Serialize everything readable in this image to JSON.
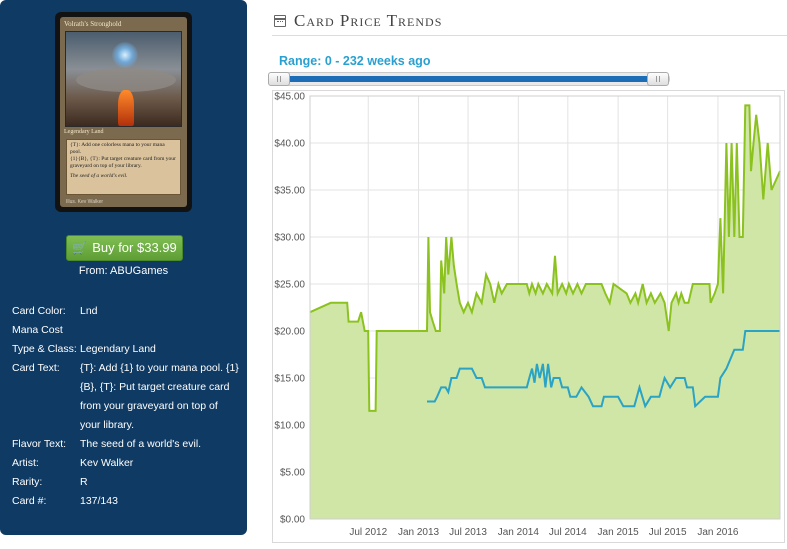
{
  "card": {
    "name": "Volrath's Stronghold",
    "type_line": "Legendary Land",
    "text_line1": "{T}: Add one colorless mana to your mana pool.",
    "text_line2": "{1}{B}, {T}: Put target creature card from your graveyard on top of your library.",
    "flavor": "The seed of a world's evil.",
    "illustrator": "Illus. Kev Walker"
  },
  "buy": {
    "label": "Buy for $33.99",
    "from": "From: ABUGames",
    "icon": "cart-icon"
  },
  "props": [
    {
      "label": "Card Color:",
      "value": "Lnd"
    },
    {
      "label": "Mana Cost",
      "value": ""
    },
    {
      "label": "Type & Class:",
      "value": "Legendary Land"
    },
    {
      "label": "Card Text:",
      "value": "{T}: Add {1} to your mana pool. {1}{B}, {T}: Put target creature card from your graveyard on top of your library."
    },
    {
      "label": "Flavor Text:",
      "value": "The seed of a world's evil."
    },
    {
      "label": "Artist:",
      "value": "Kev Walker"
    },
    {
      "label": "Rarity:",
      "value": "R"
    },
    {
      "label": "Card #:",
      "value": "137/143"
    }
  ],
  "section": {
    "title": "Card Price Trends",
    "icon": "calendar-icon"
  },
  "range": {
    "label": "Range: 0 - 232 weeks ago",
    "min": 0,
    "max": 232
  },
  "colors": {
    "panel": "#0f3a63",
    "buy": "#6aab3f",
    "range_text": "#29a0d0",
    "slider": "#1c6db5",
    "green_line": "#8cc21f",
    "green_fill": "#cfe6a6",
    "blue_line": "#2aa3c4"
  },
  "chart_data": {
    "type": "area",
    "x_type": "date",
    "xlim": [
      "2011-12-01",
      "2016-08-15"
    ],
    "ylim": [
      0,
      45
    ],
    "grid": true,
    "y_ticks": [
      "$0.00",
      "$5.00",
      "$10.00",
      "$15.00",
      "$20.00",
      "$25.00",
      "$30.00",
      "$35.00",
      "$40.00",
      "$45.00"
    ],
    "x_ticks": [
      {
        "date": "2012-07-01",
        "label": "Jul 2012"
      },
      {
        "date": "2013-01-01",
        "label": "Jan 2013"
      },
      {
        "date": "2013-07-01",
        "label": "Jul 2013"
      },
      {
        "date": "2014-01-01",
        "label": "Jan 2014"
      },
      {
        "date": "2014-07-01",
        "label": "Jul 2014"
      },
      {
        "date": "2015-01-01",
        "label": "Jan 2015"
      },
      {
        "date": "2015-07-01",
        "label": "Jul 2015"
      },
      {
        "date": "2016-01-01",
        "label": "Jan 2016"
      }
    ],
    "series": [
      {
        "style": "area",
        "points": [
          [
            "2011-12-01",
            22.0
          ],
          [
            "2012-02-15",
            23.0
          ],
          [
            "2012-04-15",
            23.0
          ],
          [
            "2012-04-20",
            21.0
          ],
          [
            "2012-05-25",
            21.0
          ],
          [
            "2012-06-05",
            22.0
          ],
          [
            "2012-06-18",
            20.0
          ],
          [
            "2012-07-01",
            20.0
          ],
          [
            "2012-07-05",
            11.5
          ],
          [
            "2012-07-28",
            11.5
          ],
          [
            "2012-08-01",
            20.0
          ],
          [
            "2013-02-01",
            20.0
          ],
          [
            "2013-02-06",
            30.0
          ],
          [
            "2013-02-12",
            22.0
          ],
          [
            "2013-02-22",
            21.0
          ],
          [
            "2013-03-05",
            20.0
          ],
          [
            "2013-03-20",
            20.0
          ],
          [
            "2013-03-25",
            27.5
          ],
          [
            "2013-04-05",
            24.0
          ],
          [
            "2013-04-12",
            30.0
          ],
          [
            "2013-04-20",
            26.0
          ],
          [
            "2013-05-01",
            30.0
          ],
          [
            "2013-05-10",
            27.0
          ],
          [
            "2013-05-20",
            25.0
          ],
          [
            "2013-06-01",
            23.0
          ],
          [
            "2013-06-15",
            22.0
          ],
          [
            "2013-07-01",
            23.0
          ],
          [
            "2013-07-15",
            22.0
          ],
          [
            "2013-08-01",
            24.0
          ],
          [
            "2013-08-20",
            23.0
          ],
          [
            "2013-09-05",
            26.0
          ],
          [
            "2013-09-20",
            25.0
          ],
          [
            "2013-10-05",
            23.0
          ],
          [
            "2013-10-20",
            25.0
          ],
          [
            "2013-11-01",
            24.0
          ],
          [
            "2013-11-20",
            25.0
          ],
          [
            "2014-02-01",
            25.0
          ],
          [
            "2014-02-10",
            24.0
          ],
          [
            "2014-02-20",
            25.0
          ],
          [
            "2014-03-05",
            24.0
          ],
          [
            "2014-03-15",
            25.0
          ],
          [
            "2014-04-01",
            24.0
          ],
          [
            "2014-04-15",
            25.0
          ],
          [
            "2014-05-05",
            24.0
          ],
          [
            "2014-05-15",
            28.0
          ],
          [
            "2014-05-25",
            24.0
          ],
          [
            "2014-06-10",
            25.0
          ],
          [
            "2014-06-25",
            24.0
          ],
          [
            "2014-07-05",
            25.0
          ],
          [
            "2014-07-20",
            24.0
          ],
          [
            "2014-08-05",
            25.0
          ],
          [
            "2014-08-20",
            24.0
          ],
          [
            "2014-09-05",
            25.0
          ],
          [
            "2014-11-01",
            25.0
          ],
          [
            "2014-11-15",
            24.0
          ],
          [
            "2014-12-01",
            23.0
          ],
          [
            "2014-12-15",
            25.0
          ],
          [
            "2015-02-01",
            24.0
          ],
          [
            "2015-02-15",
            23.0
          ],
          [
            "2015-03-05",
            24.0
          ],
          [
            "2015-03-15",
            23.0
          ],
          [
            "2015-04-01",
            25.0
          ],
          [
            "2015-04-15",
            23.0
          ],
          [
            "2015-05-01",
            24.0
          ],
          [
            "2015-05-15",
            23.0
          ],
          [
            "2015-06-05",
            24.0
          ],
          [
            "2015-06-20",
            23.0
          ],
          [
            "2015-07-05",
            20.0
          ],
          [
            "2015-07-15",
            23.0
          ],
          [
            "2015-08-01",
            24.0
          ],
          [
            "2015-08-10",
            23.0
          ],
          [
            "2015-08-20",
            24.0
          ],
          [
            "2015-09-01",
            23.0
          ],
          [
            "2015-09-15",
            23.0
          ],
          [
            "2015-10-01",
            25.0
          ],
          [
            "2015-12-01",
            25.0
          ],
          [
            "2015-12-05",
            23.0
          ],
          [
            "2015-12-20",
            24.0
          ],
          [
            "2016-01-01",
            25.0
          ],
          [
            "2016-01-10",
            32.0
          ],
          [
            "2016-01-20",
            24.0
          ],
          [
            "2016-02-01",
            40.0
          ],
          [
            "2016-02-10",
            30.0
          ],
          [
            "2016-02-20",
            40.0
          ],
          [
            "2016-03-01",
            30.0
          ],
          [
            "2016-03-10",
            40.0
          ],
          [
            "2016-03-20",
            30.0
          ],
          [
            "2016-04-01",
            30.0
          ],
          [
            "2016-04-10",
            44.0
          ],
          [
            "2016-04-25",
            44.0
          ],
          [
            "2016-05-01",
            37.0
          ],
          [
            "2016-05-10",
            40.0
          ],
          [
            "2016-05-20",
            43.0
          ],
          [
            "2016-06-01",
            40.0
          ],
          [
            "2016-06-15",
            34.0
          ],
          [
            "2016-07-01",
            40.0
          ],
          [
            "2016-07-15",
            35.0
          ],
          [
            "2016-08-15",
            37.0
          ]
        ]
      },
      {
        "style": "line",
        "points": [
          [
            "2013-02-01",
            12.5
          ],
          [
            "2013-03-01",
            12.5
          ],
          [
            "2013-03-10",
            13.0
          ],
          [
            "2013-03-25",
            14.0
          ],
          [
            "2013-04-10",
            14.0
          ],
          [
            "2013-04-20",
            13.5
          ],
          [
            "2013-05-01",
            15.0
          ],
          [
            "2013-05-20",
            15.0
          ],
          [
            "2013-06-01",
            16.0
          ],
          [
            "2013-07-15",
            16.0
          ],
          [
            "2013-08-01",
            15.0
          ],
          [
            "2013-08-20",
            15.0
          ],
          [
            "2013-09-01",
            14.0
          ],
          [
            "2014-02-01",
            14.0
          ],
          [
            "2014-02-10",
            15.0
          ],
          [
            "2014-02-20",
            16.0
          ],
          [
            "2014-03-01",
            14.5
          ],
          [
            "2014-03-10",
            16.5
          ],
          [
            "2014-03-20",
            15.0
          ],
          [
            "2014-04-01",
            16.5
          ],
          [
            "2014-04-10",
            14.0
          ],
          [
            "2014-04-20",
            16.5
          ],
          [
            "2014-05-01",
            14.0
          ],
          [
            "2014-05-10",
            15.0
          ],
          [
            "2014-06-01",
            15.0
          ],
          [
            "2014-06-10",
            14.0
          ],
          [
            "2014-07-01",
            14.0
          ],
          [
            "2014-07-10",
            13.0
          ],
          [
            "2014-08-01",
            13.0
          ],
          [
            "2014-08-20",
            14.0
          ],
          [
            "2014-09-15",
            13.0
          ],
          [
            "2014-10-01",
            12.0
          ],
          [
            "2014-11-01",
            12.0
          ],
          [
            "2014-11-10",
            13.0
          ],
          [
            "2015-01-01",
            13.0
          ],
          [
            "2015-01-20",
            12.0
          ],
          [
            "2015-03-01",
            12.0
          ],
          [
            "2015-03-20",
            14.0
          ],
          [
            "2015-04-10",
            12.0
          ],
          [
            "2015-05-01",
            13.0
          ],
          [
            "2015-06-01",
            13.0
          ],
          [
            "2015-06-10",
            14.0
          ],
          [
            "2015-06-20",
            15.0
          ],
          [
            "2015-07-10",
            14.0
          ],
          [
            "2015-08-01",
            15.0
          ],
          [
            "2015-09-01",
            15.0
          ],
          [
            "2015-09-10",
            14.0
          ],
          [
            "2015-10-01",
            14.0
          ],
          [
            "2015-10-10",
            12.0
          ],
          [
            "2015-11-15",
            13.0
          ],
          [
            "2016-01-01",
            13.0
          ],
          [
            "2016-01-10",
            15.0
          ],
          [
            "2016-02-01",
            16.0
          ],
          [
            "2016-03-01",
            18.0
          ],
          [
            "2016-04-01",
            18.0
          ],
          [
            "2016-04-10",
            20.0
          ],
          [
            "2016-08-15",
            20.0
          ]
        ]
      }
    ]
  }
}
